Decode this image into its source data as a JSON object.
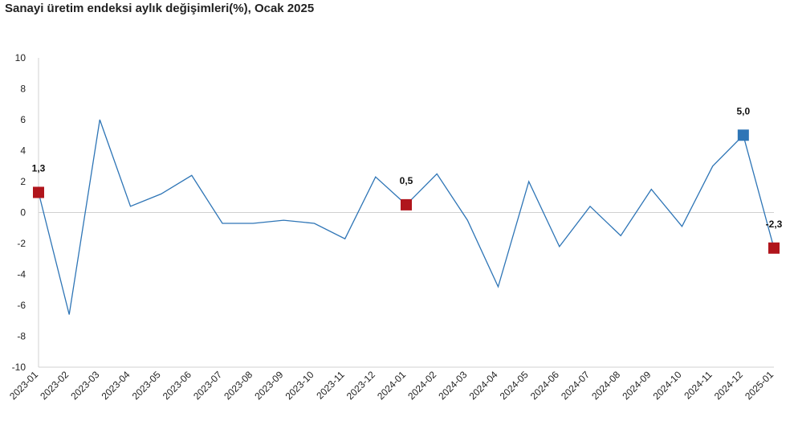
{
  "chart_data": {
    "type": "line",
    "title": "Sanayi üretim endeksi aylık değişimleri(%), Ocak 2025",
    "xlabel": "",
    "ylabel": "",
    "ylim": [
      -10,
      10
    ],
    "yticks": [
      10,
      8,
      6,
      4,
      2,
      0,
      -2,
      -4,
      -6,
      -8,
      -10
    ],
    "grid": false,
    "categories": [
      "2023-01",
      "2023-02",
      "2023-03",
      "2023-04",
      "2023-05",
      "2023-06",
      "2023-07",
      "2023-08",
      "2023-09",
      "2023-10",
      "2023-11",
      "2023-12",
      "2024-01",
      "2024-02",
      "2024-03",
      "2024-04",
      "2024-05",
      "2024-06",
      "2024-07",
      "2024-08",
      "2024-09",
      "2024-10",
      "2024-11",
      "2024-12",
      "2025-01"
    ],
    "series": [
      {
        "values": [
          1.3,
          -6.6,
          6.0,
          0.4,
          1.2,
          2.4,
          -0.7,
          -0.7,
          -0.5,
          -0.7,
          -1.7,
          2.3,
          0.5,
          2.5,
          -0.5,
          -4.8,
          2.0,
          -2.2,
          0.4,
          -1.5,
          1.5,
          -0.9,
          3.0,
          5.0,
          -2.3
        ],
        "color": "#2e75b6"
      }
    ],
    "highlights": [
      {
        "index": 0,
        "label": "1,3",
        "color": "#b0151c"
      },
      {
        "index": 12,
        "label": "0,5",
        "color": "#b0151c"
      },
      {
        "index": 23,
        "label": "5,0",
        "color": "#2e75b6"
      },
      {
        "index": 24,
        "label": "-2,3",
        "color": "#b0151c"
      }
    ],
    "colors": {
      "axis": "#d0d0d0",
      "text": "#222222"
    }
  }
}
